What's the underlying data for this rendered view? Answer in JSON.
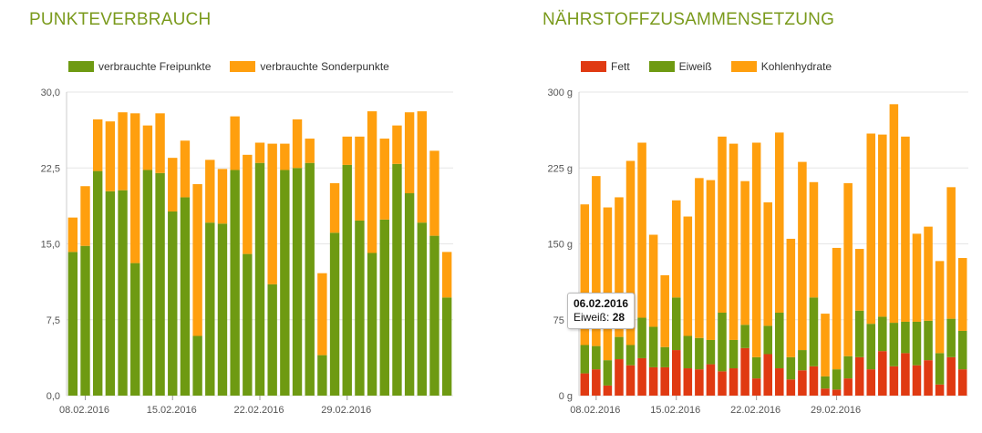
{
  "colors": {
    "title": "#7a9a1c",
    "green": "#6e9a12",
    "orange": "#ff9f0e",
    "red": "#e03a12",
    "grid": "#e6e6e6"
  },
  "chart_data": [
    {
      "type": "bar",
      "stacked": true,
      "title": "PUNKTEVERBRAUCH",
      "ylim": [
        0,
        30
      ],
      "yticks": [
        "0,0",
        "7,5",
        "15,0",
        "22,5",
        "30,0"
      ],
      "ytick_values": [
        0,
        7.5,
        15,
        22.5,
        30
      ],
      "xtick_labels": [
        {
          "index": 1,
          "label": "08.02.2016"
        },
        {
          "index": 8,
          "label": "15.02.2016"
        },
        {
          "index": 15,
          "label": "22.02.2016"
        },
        {
          "index": 22,
          "label": "29.02.2016"
        }
      ],
      "grid": true,
      "legend_position": "top-left",
      "series": [
        {
          "name": "verbrauchte Freipunkte",
          "color": "#6e9a12",
          "values": [
            14.2,
            14.8,
            22.2,
            20.2,
            20.3,
            13.1,
            22.3,
            22.0,
            18.2,
            19.6,
            5.9,
            17.1,
            17.0,
            22.3,
            14.0,
            23.0,
            11.0,
            22.3,
            22.5,
            23.0,
            4.0,
            16.1,
            22.8,
            17.3,
            14.1,
            17.4,
            22.9,
            20.0,
            17.1,
            15.8,
            9.7
          ]
        },
        {
          "name": "verbrauchte Sonderpunkte",
          "color": "#ff9f0e",
          "values": [
            3.4,
            5.9,
            5.1,
            6.9,
            7.7,
            14.8,
            4.4,
            5.9,
            5.3,
            5.6,
            15.0,
            6.2,
            5.4,
            5.3,
            9.8,
            2.0,
            13.9,
            2.6,
            4.8,
            2.4,
            8.1,
            4.9,
            2.8,
            8.3,
            14.0,
            8.0,
            3.8,
            8.0,
            11.0,
            8.4,
            4.5
          ]
        }
      ]
    },
    {
      "type": "bar",
      "stacked": true,
      "title": "NÄHRSTOFFZUSAMMENSETZUNG",
      "ylim": [
        0,
        300
      ],
      "yticks": [
        "0 g",
        "75 g",
        "150 g",
        "225 g",
        "300 g"
      ],
      "ytick_values": [
        0,
        75,
        150,
        225,
        300
      ],
      "xtick_labels": [
        {
          "index": 1,
          "label": "08.02.2016"
        },
        {
          "index": 8,
          "label": "15.02.2016"
        },
        {
          "index": 15,
          "label": "22.02.2016"
        },
        {
          "index": 22,
          "label": "29.02.2016"
        }
      ],
      "grid": true,
      "legend_position": "top-left",
      "series": [
        {
          "name": "Fett",
          "color": "#e03a12",
          "values": [
            22,
            26,
            10,
            36,
            30,
            37,
            28,
            28,
            45,
            27,
            26,
            31,
            24,
            27,
            47,
            17,
            41,
            27,
            16,
            25,
            29,
            7,
            6,
            17,
            38,
            26,
            44,
            29,
            42,
            30,
            35,
            11,
            38,
            26
          ]
        },
        {
          "name": "Eiweiß",
          "color": "#6e9a12",
          "values": [
            28,
            23,
            25,
            22,
            20,
            40,
            40,
            20,
            52,
            32,
            31,
            24,
            58,
            28,
            23,
            21,
            28,
            55,
            22,
            20,
            68,
            12,
            20,
            22,
            46,
            45,
            34,
            43,
            31,
            43,
            39,
            31,
            38,
            38
          ]
        },
        {
          "name": "Kohlenhydrate",
          "color": "#ff9f0e",
          "values": [
            139,
            168,
            151,
            138,
            182,
            173,
            91,
            71,
            96,
            118,
            158,
            158,
            174,
            194,
            142,
            212,
            122,
            178,
            117,
            186,
            114,
            62,
            120,
            171,
            61,
            188,
            180,
            216,
            183,
            87,
            93,
            91,
            130,
            72
          ]
        }
      ]
    }
  ],
  "tooltip": {
    "date": "06.02.2016",
    "label": "Eiweiß:",
    "value": "28"
  }
}
